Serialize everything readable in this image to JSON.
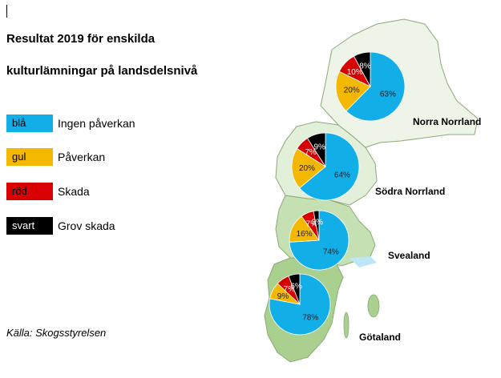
{
  "title_line1": "Resultat 2019 för enskilda",
  "title_line2": "kulturlämningar på landsdelsnivå",
  "legend": [
    {
      "swatch": "blå",
      "label": "Ingen påverkan",
      "color": "#11aee8",
      "text_color": "#000000"
    },
    {
      "swatch": "gul",
      "label": "Påverkan",
      "color": "#f5b800",
      "text_color": "#000000"
    },
    {
      "swatch": "röd",
      "label": "Skada",
      "color": "#d80000",
      "text_color": "#000000"
    },
    {
      "swatch": "svart",
      "label": "Grov skada",
      "color": "#000000",
      "text_color": "#ffffff"
    }
  ],
  "source": "Källa: Skogsstyrelsen",
  "chart_data": {
    "type": "pie",
    "categories": [
      "Ingen påverkan",
      "Påverkan",
      "Skada",
      "Grov skada"
    ],
    "colors": [
      "#11aee8",
      "#f5b800",
      "#d80000",
      "#000000"
    ],
    "regions": [
      {
        "name": "Norra Norrland",
        "values": [
          63,
          20,
          10,
          8
        ],
        "labels": [
          "63%",
          "20%",
          "10%",
          "8%"
        ]
      },
      {
        "name": "Södra Norrland",
        "values": [
          64,
          20,
          7,
          9
        ],
        "labels": [
          "64%",
          "20%",
          "7%",
          "9%"
        ]
      },
      {
        "name": "Svealand",
        "values": [
          74,
          16,
          7,
          3
        ],
        "labels": [
          "74%",
          "16%",
          "7%",
          "3%"
        ]
      },
      {
        "name": "Götaland",
        "values": [
          78,
          9,
          7,
          6
        ],
        "labels": [
          "78%",
          "9%",
          "7%",
          "6%"
        ]
      }
    ]
  }
}
